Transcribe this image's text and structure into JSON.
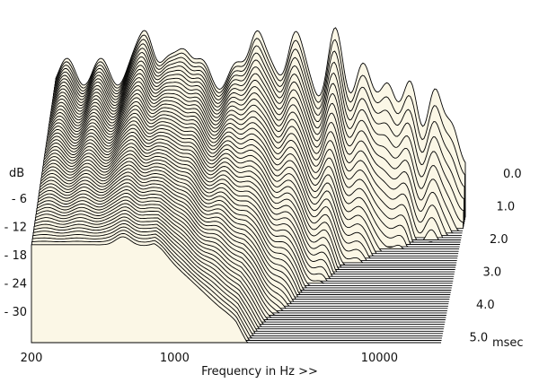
{
  "chart_data": {
    "type": "area",
    "kind": "cumulative spectral decay (waterfall) plot",
    "xlabel": "Frequency in Hz >>",
    "ylabel": "dB",
    "zlabel": "msec",
    "x_scale": "log",
    "x_range": [
      200,
      20000
    ],
    "x_ticks": [
      200,
      1000,
      10000
    ],
    "x_tick_labels": [
      "200",
      "1000",
      "10000"
    ],
    "y_range": [
      -36,
      0
    ],
    "y_ticks": [
      -6,
      -12,
      -18,
      -24,
      -30
    ],
    "y_tick_labels": [
      "- 6",
      "- 12",
      "- 18",
      "- 24",
      "- 30"
    ],
    "z_range": [
      0.0,
      5.0
    ],
    "z_ticks": [
      0.0,
      1.0,
      2.0,
      3.0,
      4.0,
      5.0
    ],
    "z_tick_labels": [
      "0.0",
      "1.0",
      "2.0",
      "3.0",
      "4.0",
      "5.0"
    ],
    "slice_count": 56,
    "fill_color": "#fbf7e6",
    "line_color": "#000000",
    "grid": false,
    "legend": "none"
  }
}
